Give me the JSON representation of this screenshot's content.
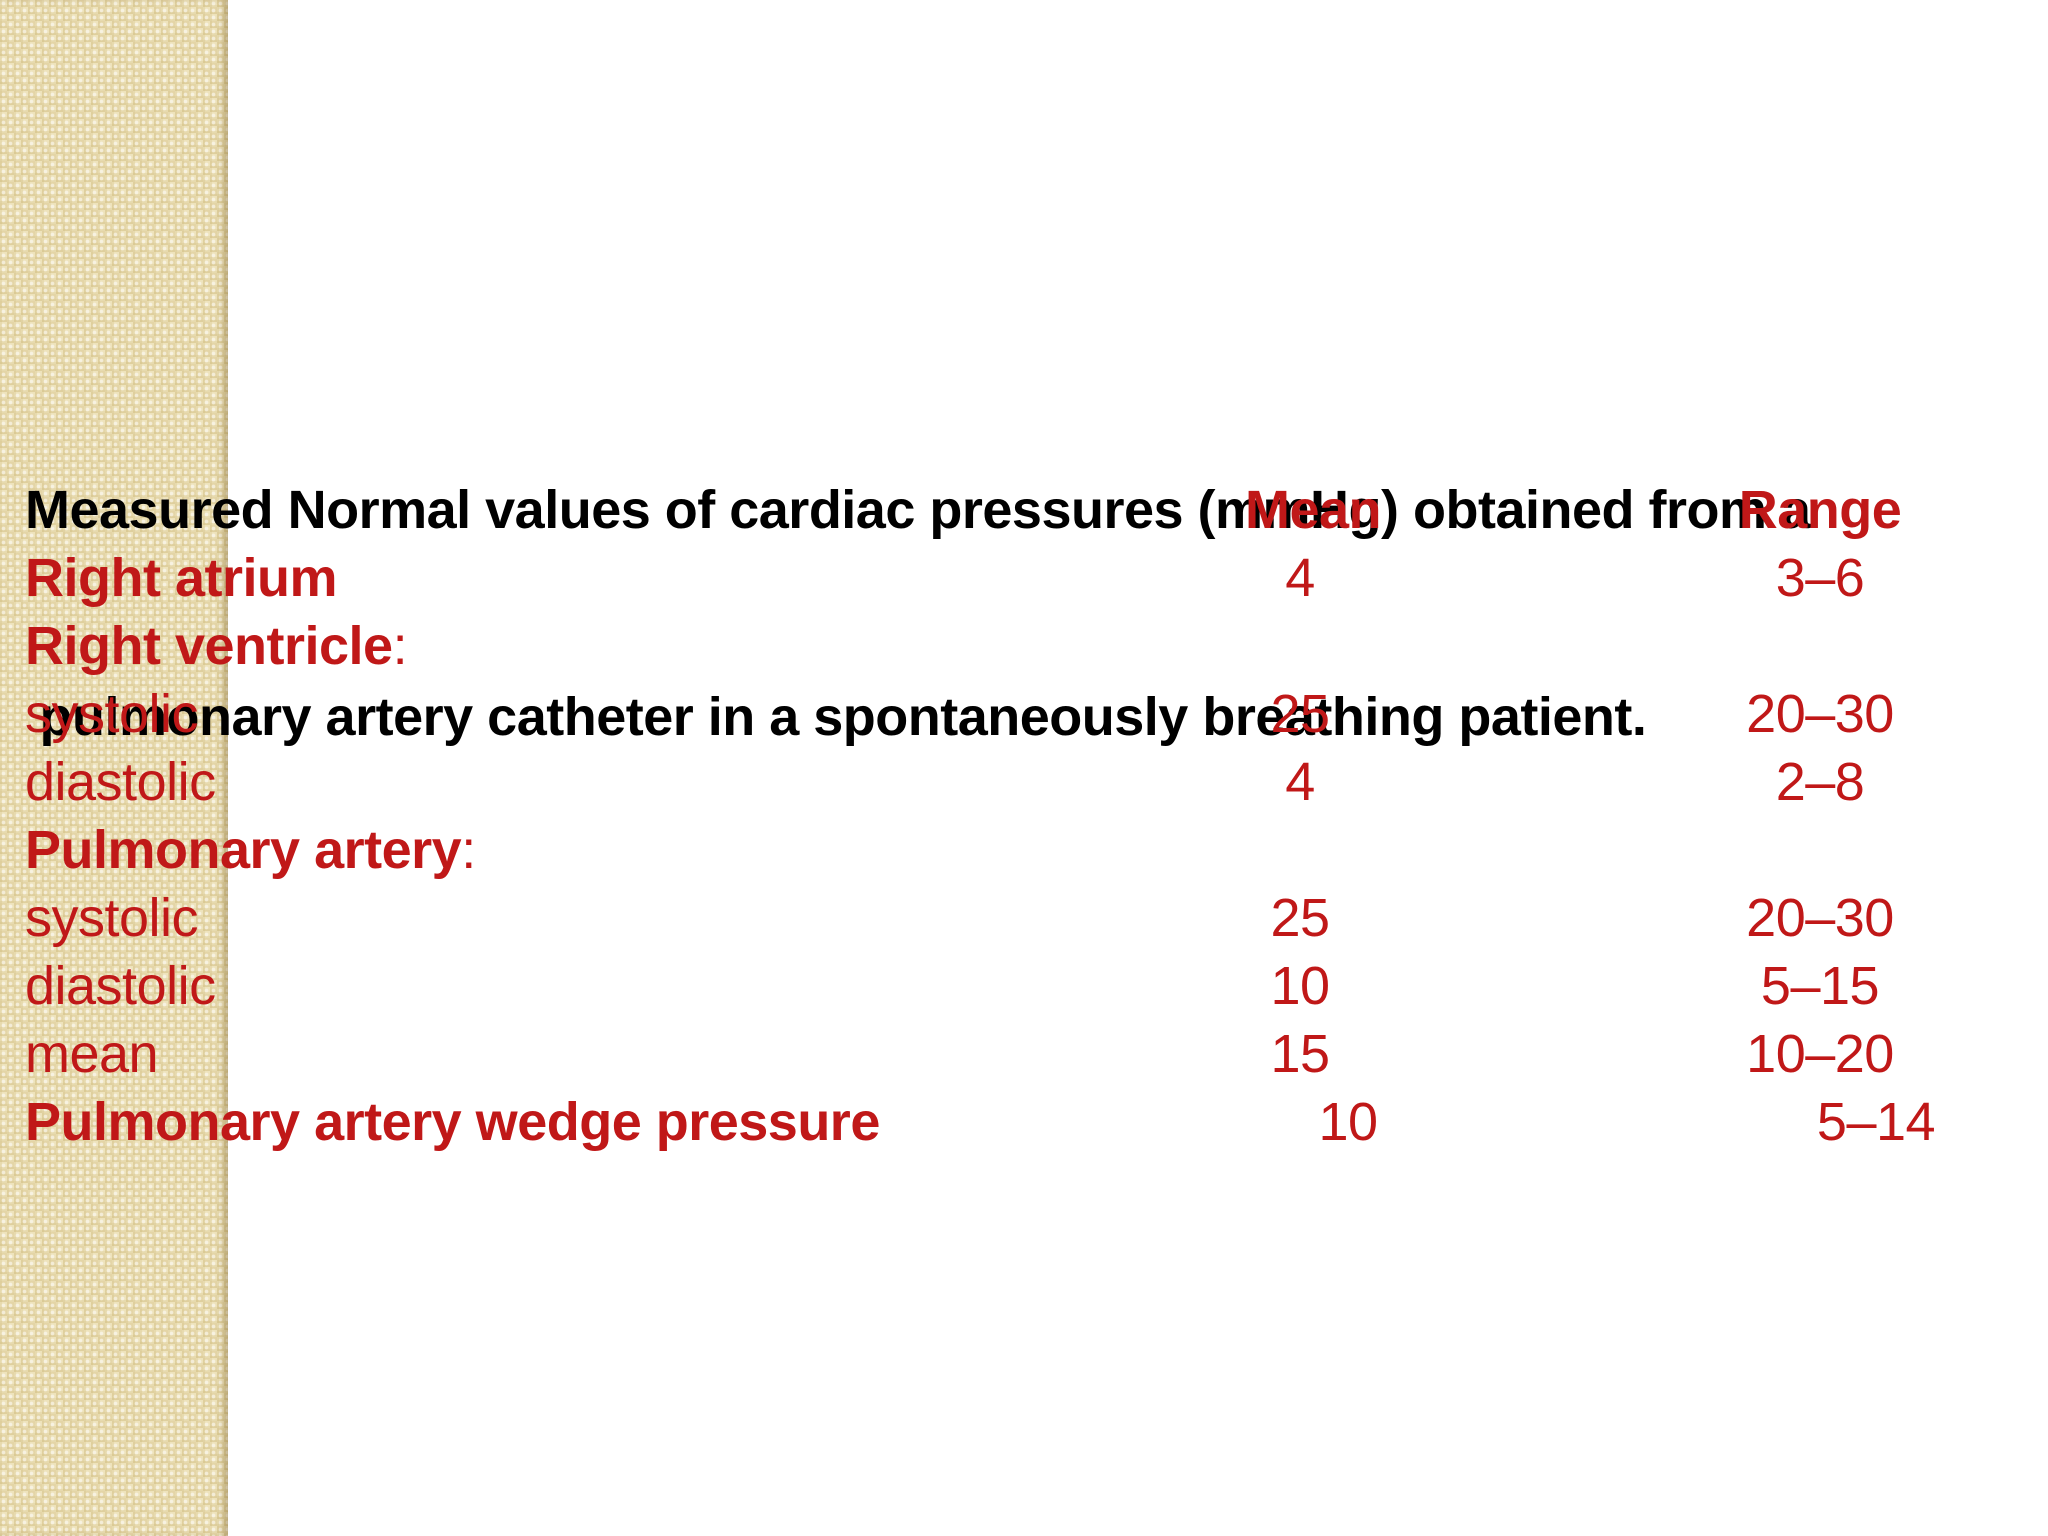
{
  "title": {
    "line1": "Measured Normal values of cardiac pressures (mmHg) obtained from a",
    "line2": " pulmonary artery catheter in a spontaneously breathing patient."
  },
  "table": {
    "headers": {
      "mean": "Mean",
      "range": "Range"
    },
    "rows": [
      {
        "label": "Right atrium",
        "bold": true,
        "mean": "4",
        "range": "3–6"
      },
      {
        "label": "Right ventricle",
        "bold": true,
        "suffix": ":"
      },
      {
        "label": "systolic",
        "bold": false,
        "mean": "25",
        "range": "20–30"
      },
      {
        "label": "diastolic",
        "bold": false,
        "mean": "4",
        "range": "2–8"
      },
      {
        "label": "Pulmonary artery",
        "bold": true,
        "suffix": ":"
      },
      {
        "label": "systolic",
        "bold": false,
        "mean": "25",
        "range": "20–30"
      },
      {
        "label": "diastolic",
        "bold": false,
        "mean": "10",
        "range": "5–15"
      },
      {
        "label": "mean",
        "bold": false,
        "mean": "15",
        "range": "10–20"
      },
      {
        "label": "Pulmonary artery wedge pressure",
        "bold": true,
        "mean": "10",
        "range": "5–14"
      }
    ]
  },
  "colors": {
    "accent_red": "#c01818",
    "title_black": "#000000",
    "stripe_beige": "#eee3bc",
    "background_white": "#ffffff"
  }
}
